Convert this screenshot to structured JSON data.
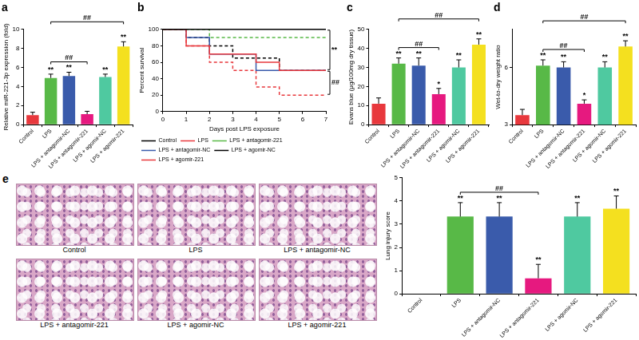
{
  "chart_data": [
    {
      "type": "bar",
      "title": "a",
      "categories": [
        "Control",
        "LPS",
        "LPS + antagomir-NC",
        "LPS + antagomir-221",
        "LPS + agomir-NC",
        "LPS + agomir-221"
      ],
      "values": [
        1.0,
        4.9,
        5.1,
        1.1,
        5.0,
        8.2
      ],
      "errors": [
        0.3,
        0.4,
        0.4,
        0.3,
        0.3,
        0.5
      ],
      "colors": [
        "#e8383d",
        "#58b947",
        "#3a5bab",
        "#e6197f",
        "#4fc9a0",
        "#f4e01f"
      ],
      "y_label": "Relative miR-221-3p expression (fold)",
      "ylim": [
        0,
        10
      ],
      "yticks": [
        0,
        2,
        4,
        6,
        8,
        10
      ],
      "grid": false,
      "significance": [
        null,
        "**",
        "**",
        null,
        "**",
        "**"
      ],
      "brackets": [
        {
          "text": "##",
          "from": "LPS",
          "to": "LPS + antagomir-221"
        },
        {
          "text": "##",
          "from": "LPS",
          "to": "LPS + agomir-221"
        }
      ]
    },
    {
      "type": "line",
      "title": "b",
      "x_label": "Days post LPS exposure",
      "y_label": "Percent survival",
      "xlim": [
        0,
        7
      ],
      "xticks": [
        0,
        1,
        2,
        3,
        4,
        5,
        6,
        7
      ],
      "ylim": [
        0,
        100
      ],
      "yticks": [
        0,
        20,
        40,
        60,
        80,
        100
      ],
      "grid": false,
      "legend": "bottom",
      "series": [
        {
          "name": "Control",
          "color": "#000000",
          "line_style": "solid",
          "x": [
            0,
            7
          ],
          "values": [
            100,
            100
          ]
        },
        {
          "name": "LPS",
          "color": "#e8383d",
          "line_style": "solid",
          "x": [
            0,
            1,
            2,
            4,
            5,
            7
          ],
          "values": [
            100,
            80,
            70,
            60,
            50,
            50
          ]
        },
        {
          "name": "LPS + antagomir-221",
          "color": "#58b947",
          "line_style": "dashed",
          "x": [
            0,
            2,
            7
          ],
          "values": [
            100,
            90,
            90
          ]
        },
        {
          "name": "LPS + antagomir-NC",
          "color": "#3a5bab",
          "line_style": "solid",
          "x": [
            0,
            1,
            2,
            4,
            7
          ],
          "values": [
            100,
            90,
            70,
            50,
            50
          ]
        },
        {
          "name": "LPS + agomir-NC",
          "color": "#000000",
          "line_style": "dashed",
          "x": [
            0,
            1,
            2,
            3,
            5,
            7
          ],
          "values": [
            100,
            90,
            80,
            65,
            50,
            50
          ]
        },
        {
          "name": "LPS + agomir-221",
          "color": "#e8383d",
          "line_style": "dashed",
          "x": [
            0,
            1,
            2,
            3,
            4,
            5,
            7
          ],
          "values": [
            100,
            80,
            60,
            50,
            30,
            20,
            20
          ]
        }
      ],
      "brackets": [
        {
          "text": "**",
          "from": "Control",
          "to": "LPS"
        },
        {
          "text": "##",
          "from": "LPS",
          "to": "LPS + agomir-221"
        }
      ]
    },
    {
      "type": "bar",
      "title": "c",
      "categories": [
        "Control",
        "LPS",
        "LPS + antagomir-NC",
        "LPS + antagomir-221",
        "LPS + agomir-NC",
        "LPS + agomir-221"
      ],
      "values": [
        11,
        32,
        31,
        16,
        30,
        42
      ],
      "errors": [
        3,
        3,
        4,
        3,
        4,
        3
      ],
      "colors": [
        "#e8383d",
        "#58b947",
        "#3a5bab",
        "#e6197f",
        "#4fc9a0",
        "#f4e01f"
      ],
      "y_label": "Evans blue (μg/100mg dry tissue)",
      "ylim": [
        0,
        50
      ],
      "yticks": [
        0,
        10,
        20,
        30,
        40,
        50
      ],
      "grid": false,
      "significance": [
        null,
        "**",
        "**",
        "*",
        "**",
        "**"
      ],
      "brackets": [
        {
          "text": "##",
          "from": "LPS",
          "to": "LPS + antagomir-221"
        },
        {
          "text": "##",
          "from": "LPS",
          "to": "LPS + agomir-221"
        }
      ]
    },
    {
      "type": "bar",
      "title": "d",
      "categories": [
        "Control",
        "LPS",
        "LPS + antagomir-NC",
        "LPS + antagomir-221",
        "LPS + agomir-NC",
        "LPS + agomir-221"
      ],
      "values": [
        3.5,
        6.1,
        6.0,
        4.1,
        6.0,
        7.1
      ],
      "errors": [
        0.3,
        0.3,
        0.3,
        0.2,
        0.3,
        0.3
      ],
      "colors": [
        "#e8383d",
        "#58b947",
        "#3a5bab",
        "#e6197f",
        "#4fc9a0",
        "#f4e01f"
      ],
      "y_label": "Wet-to-dry weight ratio",
      "ylim": [
        3,
        8
      ],
      "yticks": [
        3,
        6
      ],
      "grid": false,
      "significance": [
        null,
        "**",
        "**",
        "*",
        "**",
        "**"
      ],
      "brackets": [
        {
          "text": "##",
          "from": "LPS",
          "to": "LPS + antagomir-221"
        },
        {
          "text": "##",
          "from": "LPS",
          "to": "LPS + agomir-221"
        }
      ]
    },
    {
      "type": "bar",
      "categories": [
        "Control",
        "LPS",
        "LPS + antagomir-NC",
        "LPS + antagomir-221",
        "LPS + agomir-NC",
        "LPS + agomir-221"
      ],
      "values": [
        0,
        3.33,
        3.33,
        0.67,
        3.33,
        3.67
      ],
      "errors": [
        0,
        0.6,
        0.6,
        0.6,
        0.6,
        0.55
      ],
      "colors": [
        "#e8383d",
        "#58b947",
        "#3a5bab",
        "#e6197f",
        "#4fc9a0",
        "#f4e01f"
      ],
      "y_label": "Lung injury score",
      "ylim": [
        0,
        5
      ],
      "yticks": [
        0,
        1,
        2,
        3,
        4,
        5
      ],
      "grid": false,
      "significance": [
        null,
        "**",
        "**",
        "**",
        "**",
        "**"
      ],
      "brackets": [
        {
          "text": "##",
          "from": "LPS",
          "to": "LPS + antagomir-221"
        }
      ]
    }
  ],
  "histology": {
    "panel": "e",
    "images": [
      "Control",
      "LPS",
      "LPS + antagomir-NC",
      "LPS + antagomir-221",
      "LPS + agomir-NC",
      "LPS + agomir-221"
    ]
  }
}
